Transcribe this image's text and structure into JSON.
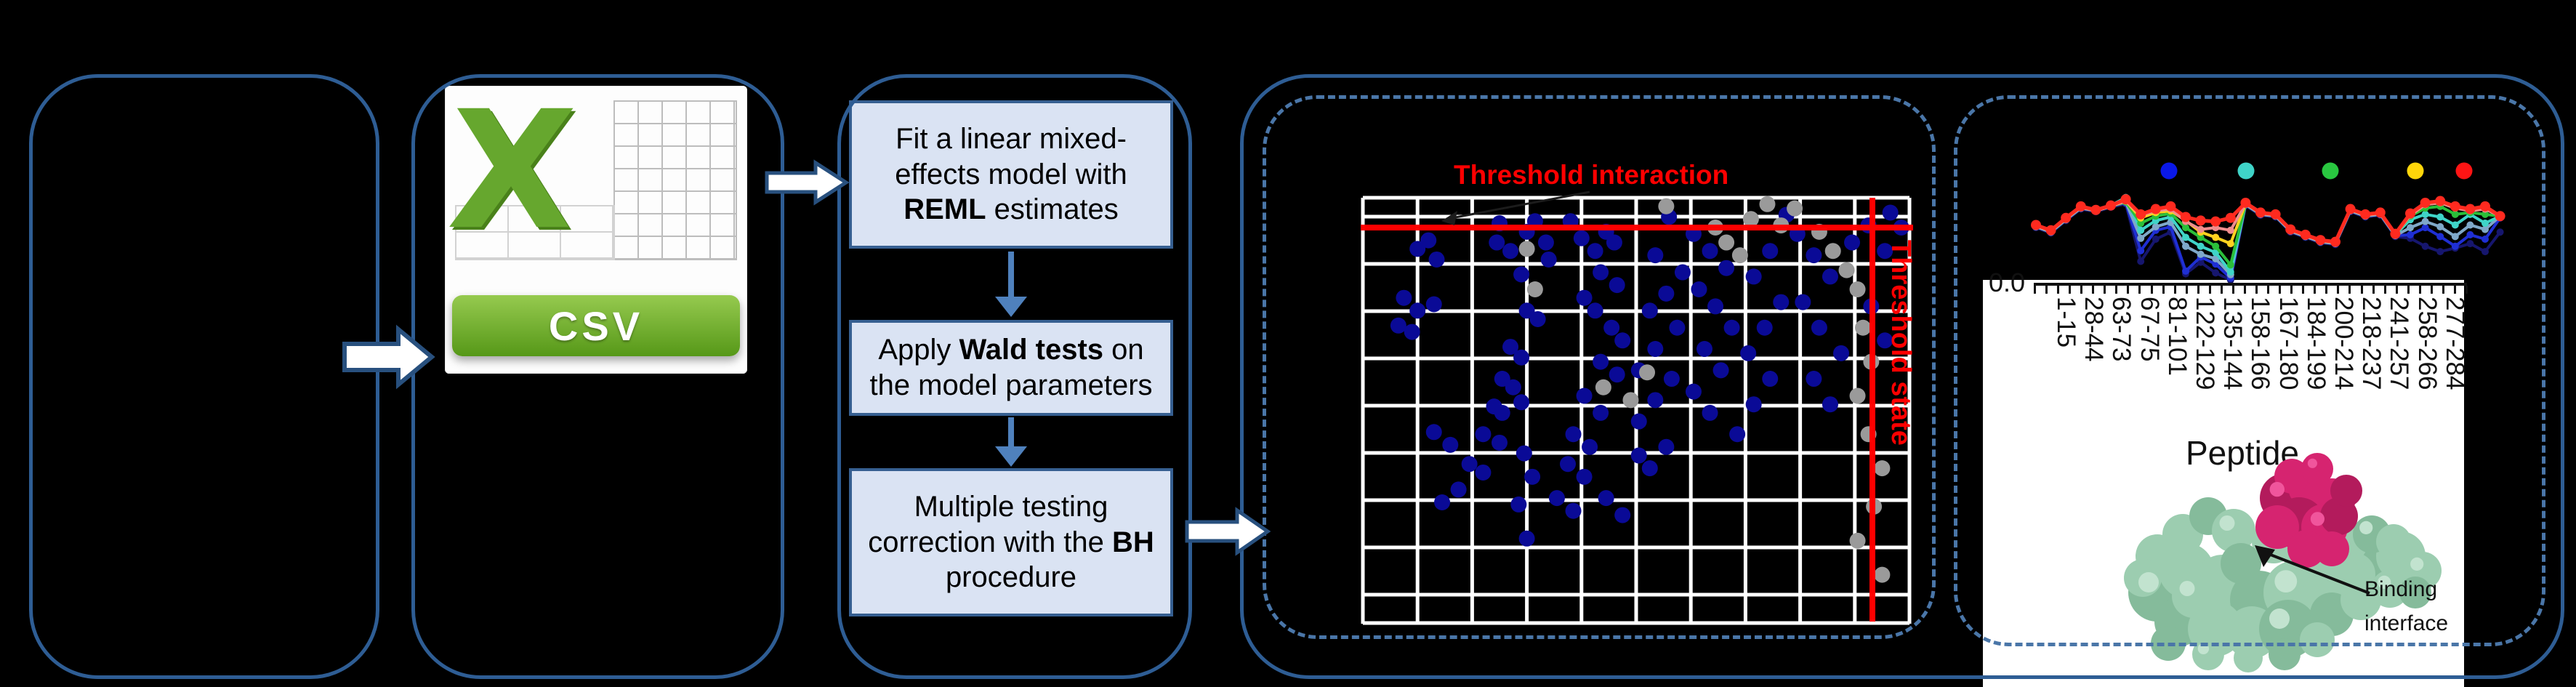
{
  "flowchart": {
    "boxes": [
      {
        "pre": "Fit a linear mixed-effects model with ",
        "bold": "REML",
        "post": " estimates"
      },
      {
        "pre": "Apply ",
        "bold": "Wald tests",
        "post": " on the model parameters"
      },
      {
        "pre": "Multiple testing correction with the ",
        "bold": "BH",
        "post": " procedure"
      }
    ]
  },
  "csv_icon": {
    "x_mark": "X",
    "label": "CSV"
  },
  "scatter_labels": {
    "title": "Threshold interaction",
    "side_label": "Threshold state"
  },
  "peptide_figure": {
    "y_tick": "0.0",
    "xlabel": "Peptide",
    "annotation": "Binding interface",
    "tick_labels": [
      "1-15",
      "28-44",
      "63-73",
      "67-75",
      "81-101",
      "122-129",
      "135-144",
      "158-166",
      "167-180",
      "184-199",
      "200-214",
      "218-237",
      "241-257",
      "258-266",
      "277-284"
    ]
  },
  "chart_data": [
    {
      "type": "scatter",
      "title": "Threshold interaction",
      "ylabel_right": "Threshold state",
      "grid": {
        "cols": 10,
        "rows": 9,
        "color": "#ffffff"
      },
      "thresholds": {
        "h_line_y": 0.07,
        "v_line_x": 0.932,
        "color": "#ff0000"
      },
      "series": [
        {
          "name": "points-blue",
          "color": "#0a0a96",
          "points": [
            [
              0.1,
              0.12
            ],
            [
              0.12,
              0.1
            ],
            [
              0.135,
              0.145
            ],
            [
              0.075,
              0.235
            ],
            [
              0.1,
              0.265
            ],
            [
              0.13,
              0.25
            ],
            [
              0.065,
              0.3
            ],
            [
              0.09,
              0.315
            ],
            [
              0.25,
              0.06
            ],
            [
              0.245,
              0.105
            ],
            [
              0.27,
              0.125
            ],
            [
              0.3,
              0.08
            ],
            [
              0.315,
              0.055
            ],
            [
              0.335,
              0.105
            ],
            [
              0.34,
              0.145
            ],
            [
              0.29,
              0.18
            ],
            [
              0.3,
              0.265
            ],
            [
              0.32,
              0.285
            ],
            [
              0.27,
              0.35
            ],
            [
              0.29,
              0.375
            ],
            [
              0.255,
              0.425
            ],
            [
              0.275,
              0.445
            ],
            [
              0.24,
              0.49
            ],
            [
              0.255,
              0.505
            ],
            [
              0.22,
              0.555
            ],
            [
              0.25,
              0.575
            ],
            [
              0.195,
              0.625
            ],
            [
              0.22,
              0.645
            ],
            [
              0.175,
              0.685
            ],
            [
              0.145,
              0.715
            ],
            [
              0.16,
              0.58
            ],
            [
              0.13,
              0.55
            ],
            [
              0.29,
              0.48
            ],
            [
              0.295,
              0.6
            ],
            [
              0.31,
              0.655
            ],
            [
              0.285,
              0.72
            ],
            [
              0.3,
              0.8
            ],
            [
              0.38,
              0.055
            ],
            [
              0.4,
              0.095
            ],
            [
              0.425,
              0.125
            ],
            [
              0.445,
              0.08
            ],
            [
              0.46,
              0.105
            ],
            [
              0.435,
              0.175
            ],
            [
              0.465,
              0.205
            ],
            [
              0.405,
              0.235
            ],
            [
              0.425,
              0.265
            ],
            [
              0.455,
              0.305
            ],
            [
              0.475,
              0.335
            ],
            [
              0.435,
              0.385
            ],
            [
              0.465,
              0.415
            ],
            [
              0.405,
              0.465
            ],
            [
              0.435,
              0.505
            ],
            [
              0.385,
              0.555
            ],
            [
              0.415,
              0.585
            ],
            [
              0.375,
              0.625
            ],
            [
              0.405,
              0.655
            ],
            [
              0.355,
              0.705
            ],
            [
              0.385,
              0.735
            ],
            [
              0.445,
              0.705
            ],
            [
              0.475,
              0.745
            ],
            [
              0.505,
              0.605
            ],
            [
              0.525,
              0.635
            ],
            [
              0.555,
              0.585
            ],
            [
              0.505,
              0.525
            ],
            [
              0.535,
              0.475
            ],
            [
              0.565,
              0.425
            ],
            [
              0.505,
              0.405
            ],
            [
              0.535,
              0.355
            ],
            [
              0.575,
              0.305
            ],
            [
              0.525,
              0.265
            ],
            [
              0.555,
              0.225
            ],
            [
              0.585,
              0.175
            ],
            [
              0.535,
              0.135
            ],
            [
              0.56,
              0.045
            ],
            [
              0.605,
              0.085
            ],
            [
              0.635,
              0.125
            ],
            [
              0.665,
              0.165
            ],
            [
              0.615,
              0.215
            ],
            [
              0.645,
              0.255
            ],
            [
              0.675,
              0.305
            ],
            [
              0.625,
              0.355
            ],
            [
              0.655,
              0.405
            ],
            [
              0.605,
              0.455
            ],
            [
              0.635,
              0.505
            ],
            [
              0.685,
              0.555
            ],
            [
              0.715,
              0.485
            ],
            [
              0.745,
              0.425
            ],
            [
              0.705,
              0.365
            ],
            [
              0.735,
              0.305
            ],
            [
              0.765,
              0.245
            ],
            [
              0.715,
              0.185
            ],
            [
              0.745,
              0.125
            ],
            [
              0.775,
              0.04
            ],
            [
              0.795,
              0.085
            ],
            [
              0.825,
              0.135
            ],
            [
              0.855,
              0.185
            ],
            [
              0.805,
              0.245
            ],
            [
              0.835,
              0.305
            ],
            [
              0.875,
              0.365
            ],
            [
              0.825,
              0.425
            ],
            [
              0.855,
              0.485
            ],
            [
              0.895,
              0.105
            ],
            [
              0.925,
              0.065
            ],
            [
              0.965,
              0.035
            ],
            [
              0.985,
              0.07
            ],
            [
              0.955,
              0.125
            ],
            [
              0.93,
              0.255
            ],
            [
              0.955,
              0.335
            ]
          ]
        },
        {
          "name": "points-grey",
          "color": "#9a9a9a",
          "points": [
            [
              0.555,
              0.02
            ],
            [
              0.74,
              0.015
            ],
            [
              0.765,
              0.065
            ],
            [
              0.79,
              0.025
            ],
            [
              0.71,
              0.05
            ],
            [
              0.3,
              0.12
            ],
            [
              0.315,
              0.215
            ],
            [
              0.645,
              0.07
            ],
            [
              0.665,
              0.105
            ],
            [
              0.69,
              0.135
            ],
            [
              0.835,
              0.08
            ],
            [
              0.86,
              0.125
            ],
            [
              0.885,
              0.17
            ],
            [
              0.905,
              0.215
            ],
            [
              0.915,
              0.305
            ],
            [
              0.93,
              0.385
            ],
            [
              0.905,
              0.465
            ],
            [
              0.925,
              0.555
            ],
            [
              0.95,
              0.635
            ],
            [
              0.935,
              0.725
            ],
            [
              0.905,
              0.805
            ],
            [
              0.95,
              0.885
            ],
            [
              0.44,
              0.445
            ],
            [
              0.49,
              0.475
            ],
            [
              0.52,
              0.41
            ]
          ]
        }
      ]
    },
    {
      "type": "line",
      "xlabel": "Peptide",
      "y_axis_tick": "0.0",
      "x_tick_count": 38,
      "x_tick_labels": [
        "1-15",
        "28-44",
        "63-73",
        "67-75",
        "81-101",
        "122-129",
        "135-144",
        "158-166",
        "167-180",
        "184-199",
        "200-214",
        "218-237",
        "241-257",
        "258-266",
        "277-284"
      ],
      "legend_dot_colors": [
        "#0a18e8",
        "#3fd4c8",
        "#29c740",
        "#ffd60a",
        "#ff1414"
      ],
      "series": [
        {
          "name": "navy",
          "color": "#16166e",
          "values": [
            63,
            57,
            71,
            84,
            81,
            86,
            90,
            25,
            50,
            58,
            11,
            24,
            12,
            4,
            88,
            77,
            75,
            58,
            52,
            46,
            44,
            81,
            75,
            77,
            53,
            51,
            42,
            36,
            40,
            45,
            36,
            58
          ]
        },
        {
          "name": "blue",
          "color": "#1f2fd4",
          "values": [
            64,
            58,
            72,
            85,
            82,
            87,
            91,
            37,
            60,
            64,
            14,
            30,
            22,
            6,
            89,
            78,
            76,
            59,
            53,
            47,
            45,
            82,
            76,
            78,
            54,
            55,
            63,
            53,
            42,
            55,
            50,
            74
          ]
        },
        {
          "name": "cadet",
          "color": "#7fa8c9",
          "values": [
            64,
            58,
            72,
            85,
            82,
            87,
            92,
            51,
            64,
            69,
            42,
            33,
            28,
            10,
            89,
            78,
            76,
            59,
            53,
            47,
            45,
            82,
            76,
            78,
            54,
            63,
            70,
            64,
            53,
            66,
            61,
            76
          ]
        },
        {
          "name": "turquoise",
          "color": "#3fd4c8",
          "values": [
            65,
            59,
            73,
            86,
            83,
            88,
            97,
            60,
            71,
            75,
            52,
            42,
            35,
            13,
            90,
            79,
            77,
            60,
            54,
            48,
            46,
            83,
            77,
            79,
            55,
            72,
            78,
            75,
            66,
            78,
            68,
            76
          ]
        },
        {
          "name": "green",
          "color": "#2bbf3a",
          "values": [
            65,
            59,
            73,
            86,
            82,
            87,
            92,
            68,
            76,
            79,
            63,
            52,
            42,
            21,
            90,
            79,
            77,
            60,
            54,
            48,
            46,
            83,
            77,
            79,
            55,
            76,
            85,
            87,
            78,
            80,
            78,
            76
          ]
        },
        {
          "name": "gold",
          "color": "#ffd21f",
          "values": [
            65,
            59,
            73,
            86,
            82,
            87,
            93,
            74,
            80,
            82,
            71,
            58,
            52,
            45,
            90,
            79,
            77,
            60,
            54,
            48,
            46,
            83,
            77,
            79,
            55,
            77,
            89,
            91,
            86,
            83,
            85,
            76
          ]
        },
        {
          "name": "salmon",
          "color": "#f08d8d",
          "values": [
            65,
            59,
            73,
            86,
            82,
            87,
            93,
            77,
            82,
            84,
            70,
            61,
            63,
            60,
            90,
            79,
            77,
            60,
            54,
            48,
            46,
            83,
            77,
            79,
            55,
            77,
            89,
            91,
            85,
            82,
            84,
            76
          ]
        },
        {
          "name": "red",
          "color": "#ff2a1f",
          "values": [
            66,
            60,
            74,
            87,
            83,
            88,
            95,
            78,
            84,
            87,
            75,
            71,
            70,
            74,
            91,
            80,
            78,
            61,
            55,
            49,
            47,
            84,
            78,
            80,
            56,
            79,
            91,
            93,
            87,
            84,
            87,
            76
          ]
        }
      ]
    }
  ]
}
